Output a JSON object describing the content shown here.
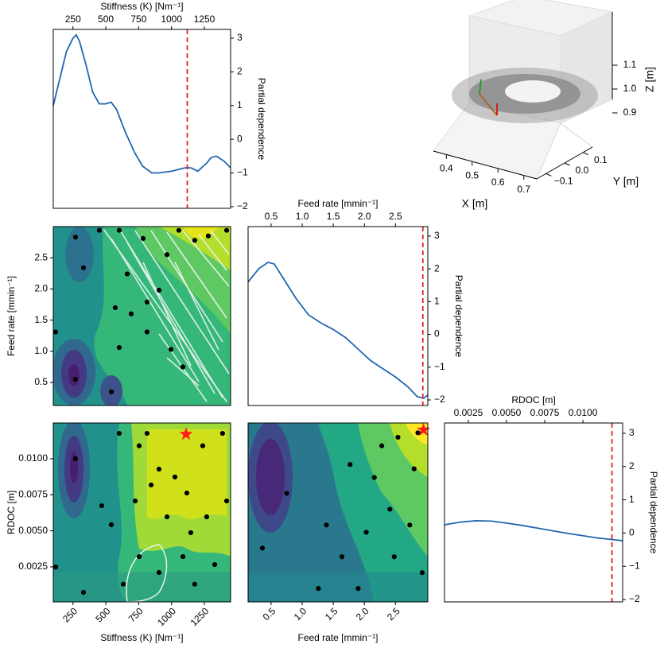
{
  "chart_data": [
    {
      "type": "line",
      "xlabel": "Stiffness (K) [Nm⁻¹]",
      "ylabel": "Partial dependence",
      "x": [
        100,
        150,
        200,
        250,
        275,
        300,
        350,
        400,
        450,
        500,
        540,
        580,
        650,
        720,
        780,
        850,
        900,
        1000,
        1100,
        1150,
        1200,
        1270,
        1300,
        1340,
        1400,
        1450
      ],
      "values": [
        1.0,
        1.8,
        2.6,
        3.0,
        3.1,
        2.9,
        2.2,
        1.4,
        1.05,
        1.05,
        1.1,
        0.9,
        0.2,
        -0.4,
        -0.8,
        -1.0,
        -1.0,
        -0.95,
        -0.85,
        -0.85,
        -0.95,
        -0.7,
        -0.55,
        -0.5,
        -0.65,
        -0.85
      ],
      "color": "#1f67b0",
      "vline": 1120,
      "vline_color": "#e8201c",
      "xlim": [
        100,
        1450
      ],
      "ylim": [
        -2.05,
        3.26
      ],
      "xticks": [
        250,
        500,
        750,
        1000,
        1250
      ],
      "yticks": [
        3,
        2,
        1,
        0,
        {
          "value": -1,
          "label": "−1"
        },
        {
          "value": -2,
          "label": "−2"
        }
      ]
    },
    {
      "type": "surface3d",
      "xlabel": "X [m]",
      "ylabel": "Y [m]",
      "zlabel": "Z [m]",
      "xlim": [
        0.35,
        0.75
      ],
      "ylim": [
        -0.15,
        0.15
      ],
      "zlim": [
        0.85,
        1.15
      ],
      "xticks": [
        0.4,
        0.5,
        0.6,
        0.7
      ],
      "yticks": [
        {
          "value": -0.1,
          "label": "−0.1"
        },
        {
          "value": 0,
          "label": "0.0"
        },
        0.1
      ],
      "zticks": [
        0.9,
        {
          "value": 1,
          "label": "1.0"
        },
        1.1
      ]
    },
    {
      "type": "contour",
      "ylabel": "Feed rate [mmin⁻¹]",
      "xlim": [
        100,
        1450
      ],
      "ylim": [
        0.13,
        3.0
      ],
      "yticks": [
        0.5,
        {
          "value": 1,
          "label": "1.0"
        },
        1.5,
        {
          "value": 2,
          "label": "2.0"
        },
        2.5
      ],
      "x": [
        269,
        451,
        602,
        330,
        663,
        784,
        572,
        814,
        693,
        118,
        814,
        602,
        269,
        542,
        996,
        1087,
        905,
        1177,
        1280,
        1420,
        1056,
        966
      ],
      "values": [
        2.83,
        2.94,
        2.94,
        2.34,
        2.24,
        2.81,
        1.7,
        1.79,
        1.6,
        1.31,
        1.31,
        1.06,
        0.55,
        0.35,
        1.03,
        0.75,
        1.98,
        2.78,
        2.85,
        2.94,
        2.94,
        2.55
      ],
      "color": "#000000"
    },
    {
      "type": "line",
      "xlabel": "Feed rate [mmin⁻¹]",
      "ylabel": "Partial dependence",
      "x": [
        0.13,
        0.3,
        0.45,
        0.55,
        0.7,
        0.9,
        1.1,
        1.3,
        1.5,
        1.7,
        1.9,
        2.1,
        2.3,
        2.5,
        2.7,
        2.85,
        2.95,
        3.02
      ],
      "values": [
        1.6,
        2.0,
        2.2,
        2.15,
        1.7,
        1.1,
        0.6,
        0.35,
        0.15,
        -0.1,
        -0.45,
        -0.8,
        -1.05,
        -1.3,
        -1.6,
        -1.9,
        -1.95,
        -1.85
      ],
      "color": "#1f67b0",
      "vline": 2.94,
      "vline_color": "#e8201c",
      "xlim": [
        0.13,
        3.02
      ],
      "ylim": [
        -2.17,
        3.29
      ],
      "xticks": [
        0.5,
        {
          "value": 1,
          "label": "1.0"
        },
        1.5,
        {
          "value": 2,
          "label": "2.0"
        },
        2.5
      ],
      "yticks": [
        3,
        2,
        1,
        0,
        {
          "value": -1,
          "label": "−1"
        },
        {
          "value": -2,
          "label": "−2"
        }
      ]
    },
    {
      "type": "contour",
      "xlabel": "Stiffness (K) [Nm⁻¹]",
      "ylabel": "RDOC [m]",
      "xlim": [
        100,
        1450
      ],
      "ylim": [
        7e-05,
        0.01248
      ],
      "xticks": [
        250,
        500,
        750,
        1000,
        1250
      ],
      "yticks": [
        0.0025,
        {
          "value": 0.005,
          "label": "0.0050"
        },
        0.0075,
        {
          "value": 0.01,
          "label": "0.0100"
        }
      ],
      "x": [
        269,
        469,
        602,
        754,
        814,
        905,
        966,
        1117,
        1238,
        1389,
        724,
        754,
        905,
        1087,
        1177,
        1329,
        1420,
        118,
        330,
        542,
        633,
        1147,
        1268,
        1026,
        845
      ],
      "values": [
        0.01,
        0.00674,
        0.01176,
        0.0109,
        0.01176,
        0.00928,
        0.00597,
        0.00762,
        0.0109,
        0.01176,
        0.00707,
        0.00321,
        0.00211,
        0.00321,
        0.0013,
        0.00266,
        0.00707,
        0.00249,
        0.00073,
        0.00542,
        0.0013,
        0.00487,
        0.00597,
        0.00873,
        0.00818
      ],
      "color": "#000000",
      "best_x": 1111,
      "best_y": 0.0117,
      "best_color": "#ff1a1a"
    },
    {
      "type": "contour",
      "xlabel": "Feed rate [mmin⁻¹]",
      "xlim": [
        0.13,
        3.02
      ],
      "ylim": [
        7e-05,
        0.01248
      ],
      "xticks": [
        0.5,
        {
          "value": 1,
          "label": "1.0"
        },
        1.5,
        {
          "value": 2,
          "label": "2.0"
        },
        2.5
      ],
      "x": [
        2.54,
        2.28,
        2.8,
        2.16,
        2.41,
        2.73,
        2.03,
        1.64,
        1.39,
        1.26,
        0.75,
        0.36,
        1.9,
        2.93,
        2.48,
        1.77,
        2.86
      ],
      "values": [
        0.01149,
        0.0109,
        0.0093,
        0.0087,
        0.0065,
        0.0054,
        0.0049,
        0.0032,
        0.0054,
        0.001,
        0.0076,
        0.0038,
        0.001,
        0.0021,
        0.0032,
        0.0096,
        0.0118
      ],
      "color": "#000000",
      "best_x": 2.95,
      "best_y": 0.012,
      "best_color": "#ff1a1a"
    },
    {
      "type": "line",
      "xlabel": "RDOC [m]",
      "ylabel": "Partial dependence",
      "x": [
        0.00094,
        0.002,
        0.003,
        0.004,
        0.005,
        0.006,
        0.007,
        0.008,
        0.009,
        0.01,
        0.011,
        0.0126
      ],
      "values": [
        0.25,
        0.33,
        0.37,
        0.36,
        0.3,
        0.23,
        0.15,
        0.07,
        -0.01,
        -0.08,
        -0.15,
        -0.23
      ],
      "color": "#1f67b0",
      "vline": 0.0119,
      "vline_color": "#e8201c",
      "xlim": [
        0.00094,
        0.0126
      ],
      "ylim": [
        -2.07,
        3.31
      ],
      "xticks": [
        0.0025,
        {
          "value": 0.005,
          "label": "0.0050"
        },
        0.0075,
        {
          "value": 0.01,
          "label": "0.0100"
        }
      ],
      "yticks": [
        3,
        2,
        1,
        0,
        {
          "value": -1,
          "label": "−1"
        },
        {
          "value": -2,
          "label": "−2"
        }
      ]
    }
  ]
}
